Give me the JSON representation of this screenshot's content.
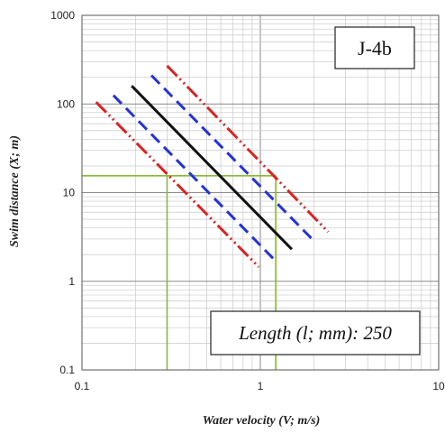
{
  "chart_data": {
    "type": "line",
    "x_scale": "log",
    "y_scale": "log",
    "xlim": [
      0.1,
      10
    ],
    "ylim": [
      0.1,
      1000
    ],
    "xlabel": "Water velocity (V; m/s)",
    "ylabel": "Swim distance (X; m)",
    "x_tick_labels": [
      "0.1",
      "1",
      "10"
    ],
    "y_tick_labels": [
      "0.1",
      "1",
      "10",
      "100",
      "1000"
    ],
    "grid": true,
    "series": [
      {
        "style": "solid",
        "color": "#111111",
        "points": [
          [
            0.19,
            160
          ],
          [
            1.5,
            2.3
          ]
        ]
      },
      {
        "style": "dashed",
        "color": "#2233dd",
        "points": [
          [
            0.245,
            210
          ],
          [
            1.95,
            3.0
          ]
        ]
      },
      {
        "style": "dashed",
        "color": "#2233dd",
        "points": [
          [
            0.15,
            125
          ],
          [
            1.2,
            1.75
          ]
        ]
      },
      {
        "style": "dash-dot-dot",
        "color": "#dd2222",
        "points": [
          [
            0.3,
            270
          ],
          [
            2.4,
            3.6
          ]
        ]
      },
      {
        "style": "dash-dot-dot",
        "color": "#dd2222",
        "points": [
          [
            0.12,
            105
          ],
          [
            0.98,
            1.45
          ]
        ]
      }
    ],
    "reference_lines": {
      "color": "#88bb33",
      "y_value": 15.5,
      "x_values": [
        0.3,
        1.22
      ]
    },
    "annotations": {
      "species_id": "J-4b",
      "length_label": "Length (l; mm): 250"
    }
  }
}
